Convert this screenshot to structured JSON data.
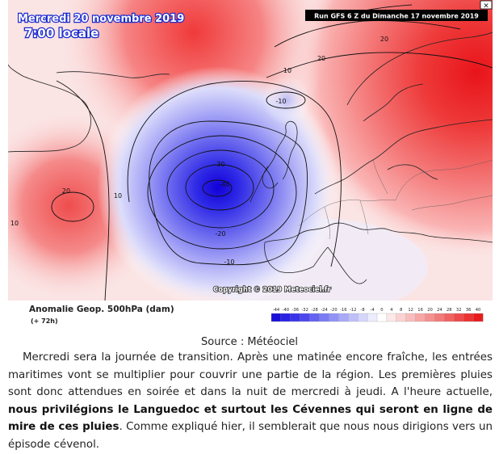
{
  "map": {
    "date_title": "Mercredi 20 novembre 2019",
    "time_title": "7:00 locale",
    "run_info": "Run GFS 6 Z du Dimanche 17 novembre 2019",
    "copyright": "Copyright © 2019 Meteociel.fr",
    "variable_label": "Anomalie Geop. 500hPa (dam)",
    "lead_time": "(+ 72h)",
    "contour_labels": [
      "20",
      "10",
      "10",
      "20",
      "-10",
      "-30",
      "-40",
      "-20",
      "-10",
      "20",
      "10"
    ],
    "legend": {
      "values": [
        "-44",
        "-40",
        "-36",
        "-32",
        "-28",
        "-24",
        "-20",
        "-16",
        "-12",
        "-8",
        "-4",
        "0",
        "4",
        "8",
        "12",
        "16",
        "20",
        "24",
        "28",
        "32",
        "36",
        "40"
      ],
      "colors": [
        "#1a10d8",
        "#2a22e4",
        "#3b35ea",
        "#4d48ee",
        "#6462f2",
        "#7b7bf4",
        "#9292f6",
        "#a9a9f8",
        "#bfbffa",
        "#d6d6fc",
        "#ececfe",
        "#ffffff",
        "#fde8e8",
        "#fbd2d2",
        "#f9bcbc",
        "#f7a6a6",
        "#f59090",
        "#f37a7a",
        "#f16262",
        "#ee4a4a",
        "#ec3232",
        "#e81c1c"
      ]
    }
  },
  "source_caption": "Source : Météociel",
  "article": {
    "part1": "Mercredi sera la journée de transition. Après une matinée encore fraîche, les entrées maritimes vont se multiplier pour couvrir une partie de la région. Les premières pluies sont donc attendues en soirée et dans la nuit de mercredi à jeudi. A l'heure actuelle, ",
    "bold": "nous privilégions le Languedoc et surtout les Cévennes qui seront en ligne de mire de ces pluies",
    "part2": ". Comme expliqué hier, il semblerait que nous nous dirigions vers un épisode cévenol."
  }
}
